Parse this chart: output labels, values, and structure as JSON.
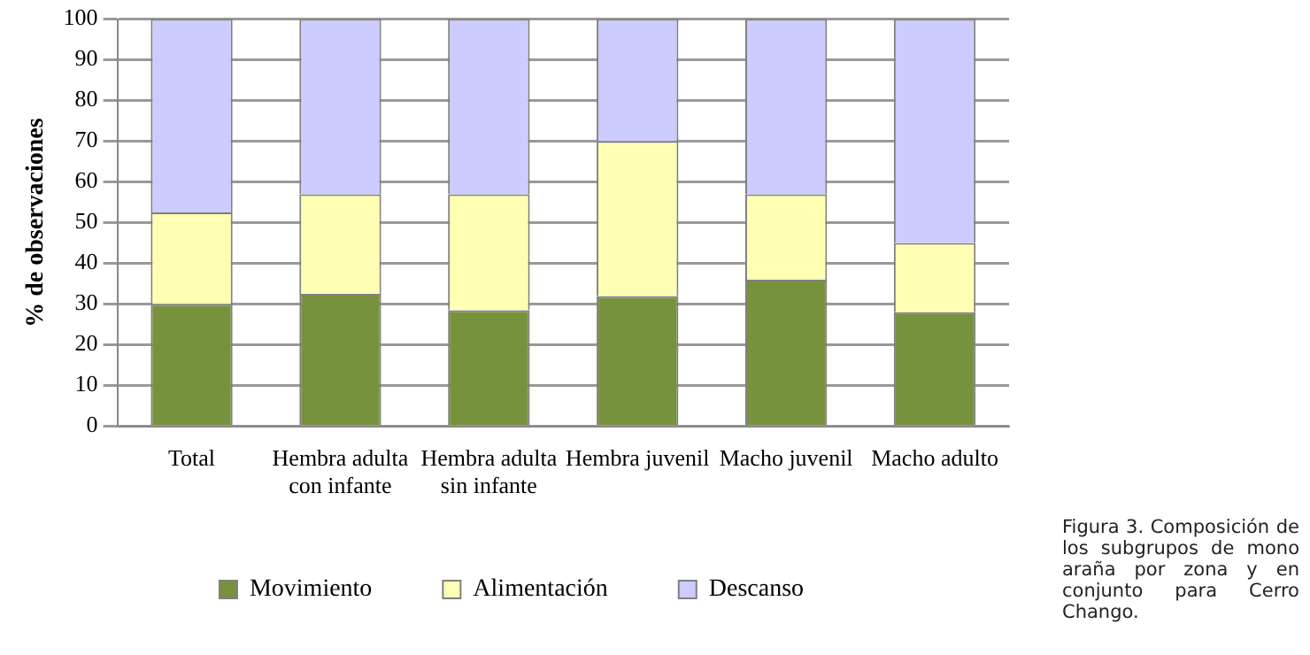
{
  "chart_data": {
    "type": "bar",
    "stacked": true,
    "ylabel": "% de observaciones",
    "categories": [
      "Total",
      "Hembra adulta\ncon infante",
      "Hembra adulta\nsin infante",
      "Hembra juvenil",
      "Macho juvenil",
      "Macho adulto"
    ],
    "series": [
      {
        "name": "Movimiento",
        "color": "#77923c",
        "values": [
          30,
          32.5,
          28.5,
          32,
          36,
          28
        ]
      },
      {
        "name": "Alimentación",
        "color": "#ffffb3",
        "values": [
          22.5,
          24.5,
          28.5,
          38,
          21,
          17
        ]
      },
      {
        "name": "Descanso",
        "color": "#ccccfe",
        "values": [
          47.5,
          43,
          43,
          30,
          43,
          55
        ]
      }
    ],
    "ylim": [
      0,
      100
    ],
    "yticks": [
      0,
      10,
      20,
      30,
      40,
      50,
      60,
      70,
      80,
      90,
      100
    ],
    "grid": "y",
    "legend": "bottom",
    "annotations": [
      "Figura 3. Composición de los subgrupos de mono araña por zona y en conjunto para Cerro Chango."
    ]
  }
}
